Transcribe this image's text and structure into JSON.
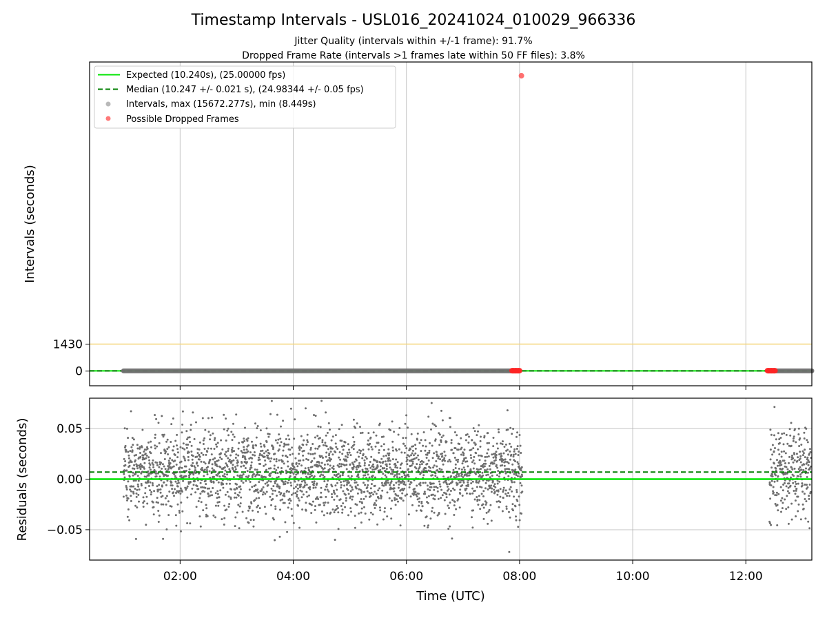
{
  "figure": {
    "title": "Timestamp Intervals - USL016_20241024_010029_966336",
    "subtitle_1": "Jitter Quality (intervals within +/-1 frame): 91.7%",
    "subtitle_2": "Dropped Frame Rate (intervals >1 frames late within 50 FF files): 3.8%"
  },
  "chart_data": [
    {
      "type": "scatter",
      "panel": "intervals",
      "xlabel": "",
      "ylabel": "Intervals (seconds)",
      "x_ticks": [
        "02:00",
        "04:00",
        "06:00",
        "08:00",
        "10:00",
        "12:00"
      ],
      "x_range": [
        "00:24",
        "13:10"
      ],
      "y_ticks": [
        0,
        1430
      ],
      "ylim": [
        -780,
        16400
      ],
      "grid": "vertical",
      "legend_position": "upper-left",
      "legend": [
        "Expected (10.240s), (25.00000 fps)",
        "Median (10.247 +/- 0.021 s), (24.98344 +/- 0.05 fps)",
        "Intervals, max (15672.277s), min (8.449s)",
        "Possible Dropped Frames"
      ],
      "reference_lines": [
        {
          "name": "Expected",
          "y": 10.24,
          "color": "#00e600",
          "style": "solid"
        },
        {
          "name": "Median",
          "y": 10.247,
          "color": "#007f00",
          "style": "dashed"
        },
        {
          "y": 1430,
          "color": "#f5d67a",
          "style": "solid"
        }
      ],
      "series": [
        {
          "name": "Intervals",
          "color": "#808080",
          "x_span": [
            [
              "01:00",
              "07:58"
            ],
            [
              "12:25",
              "13:10"
            ]
          ],
          "typical_y": 10.24
        },
        {
          "name": "Possible Dropped Frames",
          "color": "#ff4040",
          "points": [
            {
              "x": "07:53",
              "y": 20.5
            },
            {
              "x": "07:56",
              "y": 20.5
            },
            {
              "x": "07:59",
              "y": 20.5
            },
            {
              "x": "08:02",
              "y": 15672.277
            },
            {
              "x": "12:24",
              "y": 20.5
            },
            {
              "x": "12:27",
              "y": 20.5
            },
            {
              "x": "12:30",
              "y": 20.5
            }
          ]
        }
      ]
    },
    {
      "type": "scatter",
      "panel": "residuals",
      "xlabel": "Time (UTC)",
      "ylabel": "Residuals (seconds)",
      "x_ticks": [
        "02:00",
        "04:00",
        "06:00",
        "08:00",
        "10:00",
        "12:00"
      ],
      "x_range": [
        "00:24",
        "13:10"
      ],
      "y_ticks": [
        -0.05,
        0.0,
        0.05
      ],
      "y_tick_labels": [
        "−0.05",
        "0.00",
        "0.05"
      ],
      "ylim": [
        -0.08,
        0.08
      ],
      "grid": "both",
      "reference_lines": [
        {
          "name": "Expected",
          "y": 0.0,
          "color": "#00e600",
          "style": "solid"
        },
        {
          "name": "Median",
          "y": 0.007,
          "color": "#007f00",
          "style": "dashed"
        }
      ],
      "series": [
        {
          "name": "Residuals",
          "color": "#6e6e6e",
          "x_span": [
            [
              "01:00",
              "08:03"
            ],
            [
              "12:25",
              "13:10"
            ]
          ],
          "center": 0.007,
          "spread": 0.022,
          "range": [
            -0.072,
            0.08
          ]
        }
      ]
    }
  ]
}
